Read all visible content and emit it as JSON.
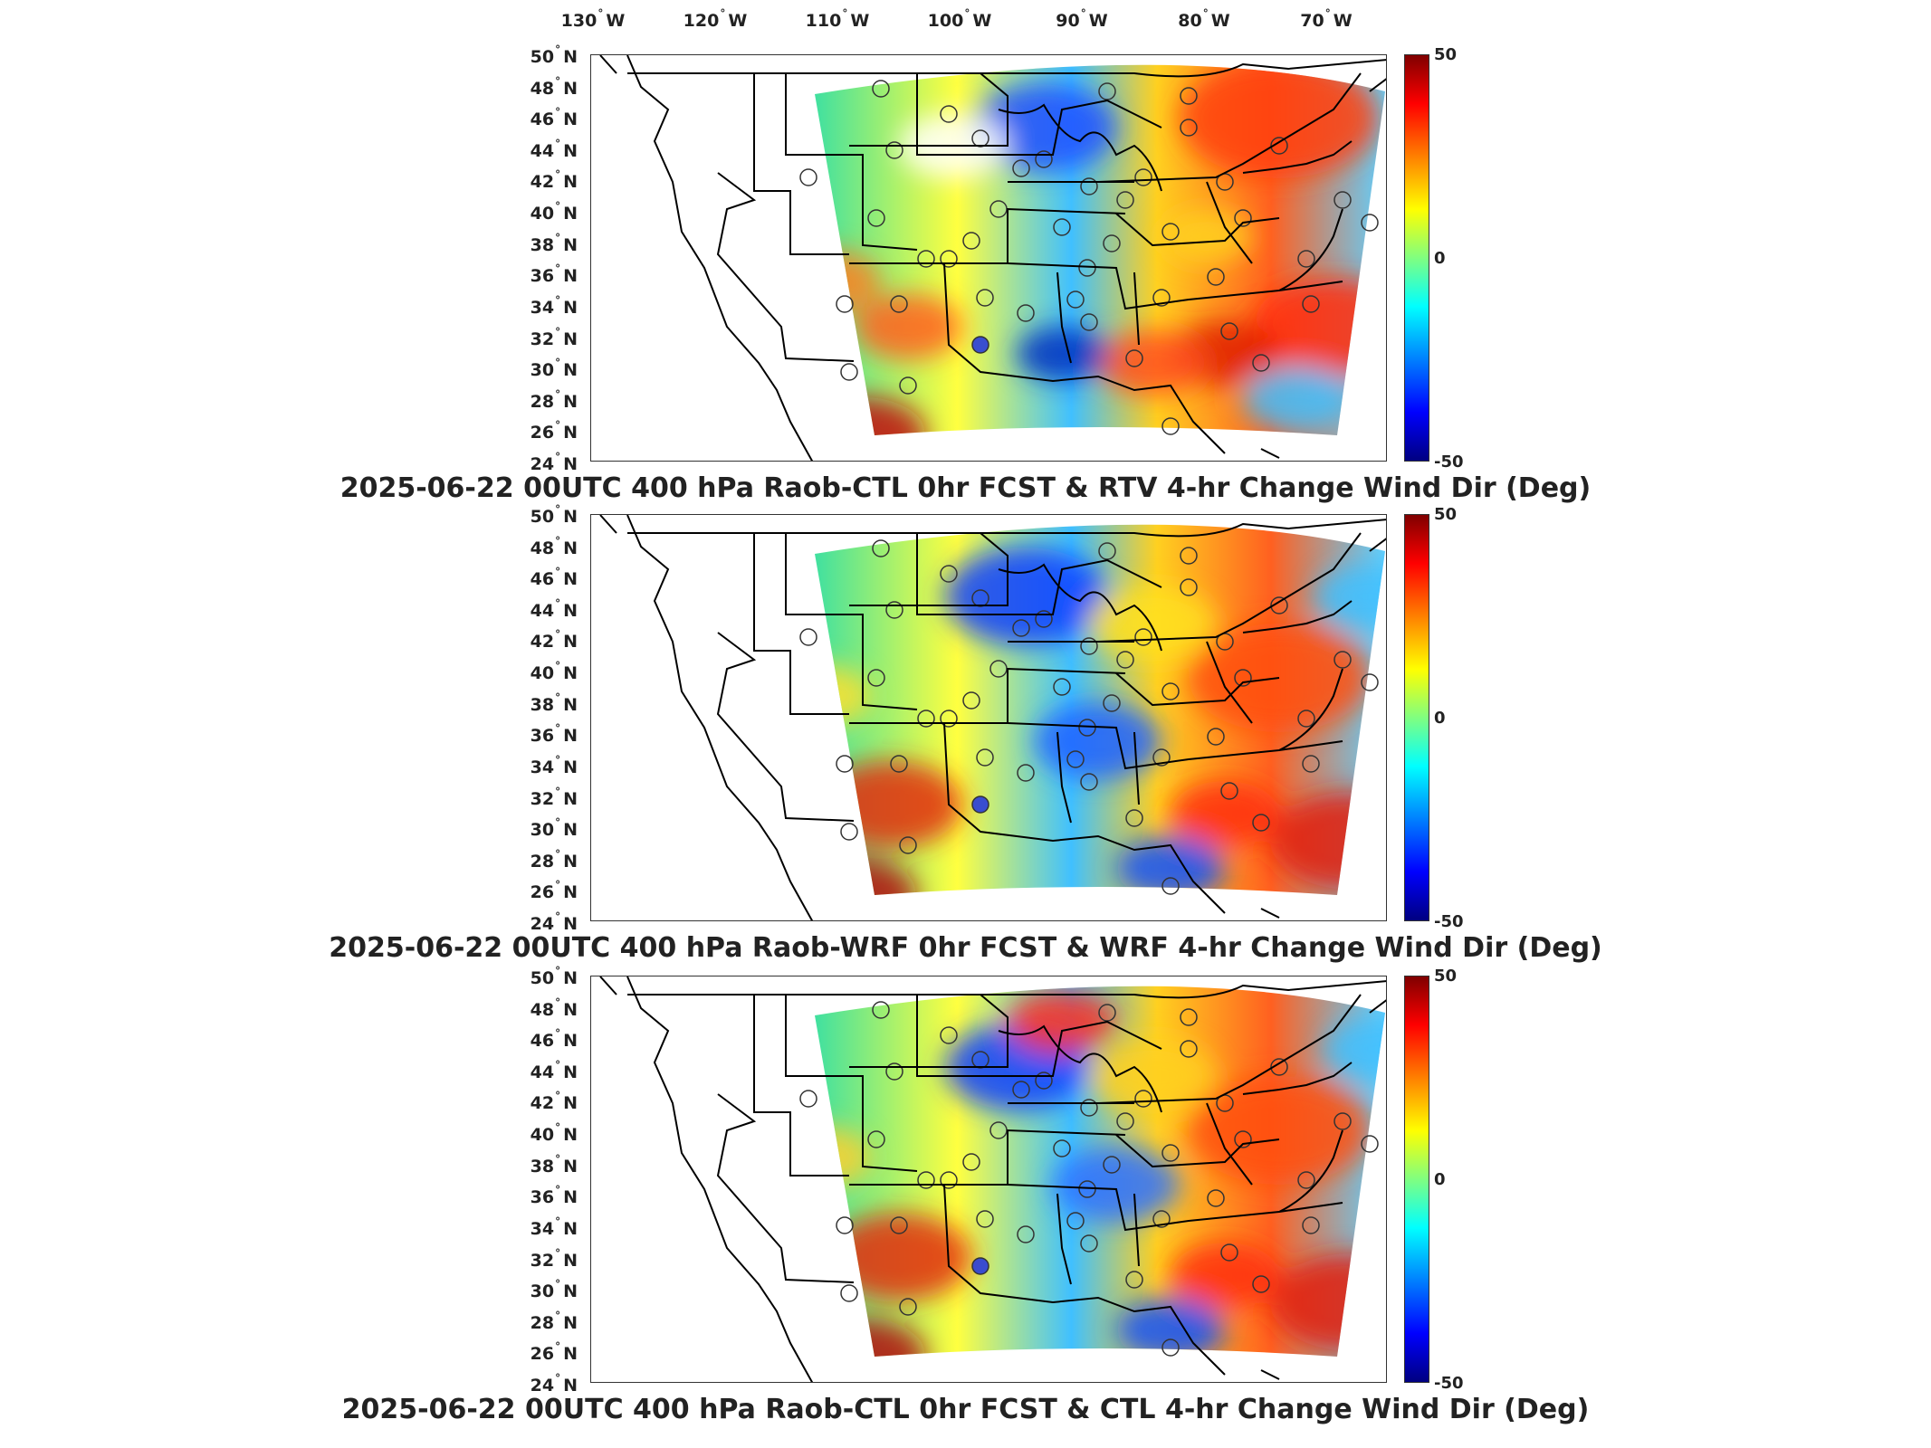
{
  "lon_labels": [
    "130",
    "120",
    "110",
    "100",
    "90",
    "80",
    "70"
  ],
  "lon_suffix": "W",
  "lat_labels": [
    "50",
    "48",
    "46",
    "44",
    "42",
    "40",
    "38",
    "36",
    "34",
    "32",
    "30",
    "28",
    "26",
    "24"
  ],
  "lat_suffix": "N",
  "colorbar": {
    "max": "50",
    "mid": "0",
    "min": "-50"
  },
  "panels": [
    {
      "title": "2025-06-22 00UTC 400 hPa Raob-CTL 0hr FCST & RTV 4-hr Change Wind Dir (Deg)"
    },
    {
      "title": "2025-06-22 00UTC 400 hPa Raob-WRF 0hr FCST & WRF 4-hr Change Wind Dir (Deg)"
    },
    {
      "title": "2025-06-22 00UTC 400 hPa Raob-CTL 0hr FCST & CTL 4-hr Change Wind Dir (Deg)"
    }
  ],
  "colors": {
    "dark_red": "#800000",
    "red": "#ff0000",
    "orange": "#ff8000",
    "yellow": "#ffff00",
    "green": "#80ff80",
    "cyan": "#00ffff",
    "blue": "#0080ff",
    "dark_blue": "#000080"
  }
}
